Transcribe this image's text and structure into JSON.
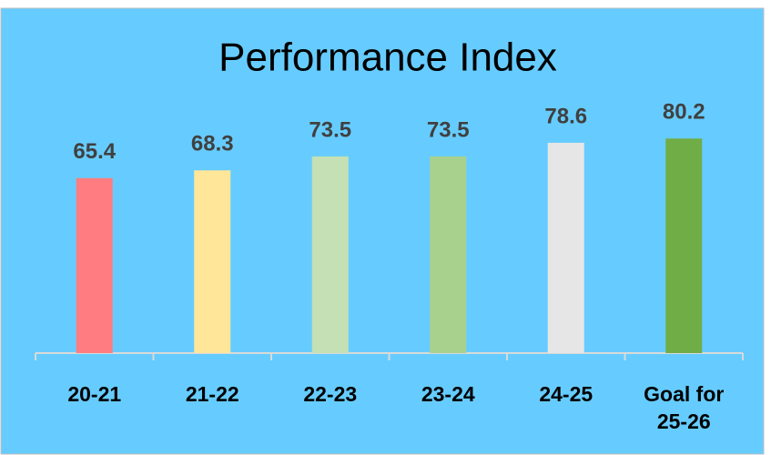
{
  "chart_data": {
    "type": "bar",
    "title": "Performance Index",
    "categories": [
      "20-21",
      "21-22",
      "22-23",
      "23-24",
      "24-25",
      "Goal for 25-26"
    ],
    "values": [
      65.4,
      68.3,
      73.5,
      73.5,
      78.6,
      80.2
    ],
    "colors": [
      "#ff7c80",
      "#ffe699",
      "#c5e0b4",
      "#a9d18e",
      "#e7e6e6",
      "#70ad47"
    ],
    "ylim": [
      0,
      100
    ]
  }
}
